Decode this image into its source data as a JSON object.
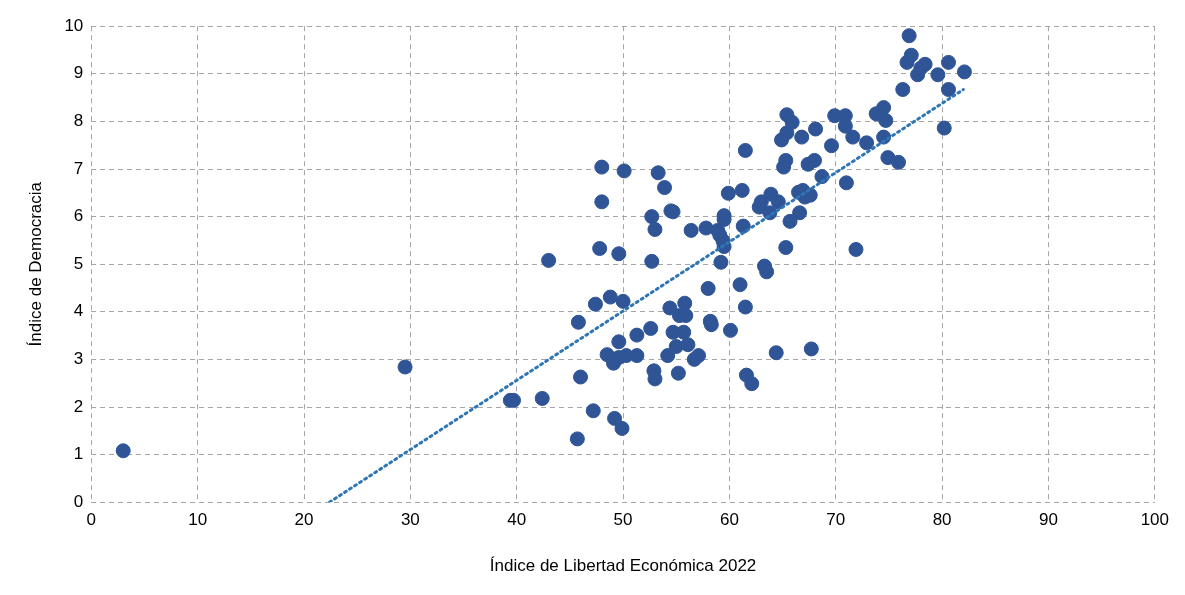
{
  "chart_data": {
    "type": "scatter",
    "xlabel": "Índice de Libertad Económica 2022",
    "ylabel": "Índice de Democracia",
    "xlim": [
      0,
      100
    ],
    "xticks": [
      0,
      10,
      20,
      30,
      40,
      50,
      60,
      70,
      80,
      90,
      100
    ],
    "ylim": [
      0,
      10
    ],
    "yticks": [
      0,
      1,
      2,
      3,
      4,
      5,
      6,
      7,
      8,
      9,
      10
    ],
    "grid": true,
    "legend": false,
    "marker": "circle",
    "series": [
      {
        "type": "scatter",
        "color": "#2f5597",
        "x": [
          3.0,
          29.5,
          39.4,
          39.7,
          42.4,
          43.0,
          45.7,
          45.8,
          46.0,
          47.2,
          47.4,
          47.8,
          48.0,
          48.0,
          48.5,
          48.8,
          49.1,
          49.2,
          49.6,
          49.6,
          49.6,
          49.9,
          50.0,
          50.1,
          50.3,
          51.3,
          51.3,
          52.6,
          52.7,
          52.7,
          52.9,
          53.0,
          53.0,
          53.3,
          53.9,
          54.2,
          54.4,
          54.5,
          54.7,
          54.7,
          55.0,
          55.2,
          55.3,
          55.7,
          55.8,
          55.9,
          56.1,
          56.4,
          56.7,
          57.1,
          57.8,
          58.0,
          58.2,
          58.3,
          58.9,
          59.1,
          59.2,
          59.4,
          59.5,
          59.5,
          59.5,
          59.9,
          60.1,
          61.0,
          61.2,
          61.3,
          61.5,
          61.5,
          61.6,
          62.1,
          62.8,
          63.0,
          63.3,
          63.5,
          63.8,
          63.9,
          64.4,
          64.6,
          64.9,
          65.1,
          65.3,
          65.3,
          65.4,
          65.4,
          65.7,
          65.9,
          66.5,
          66.6,
          66.8,
          66.9,
          67.1,
          67.4,
          67.6,
          67.7,
          68.0,
          68.1,
          68.7,
          69.6,
          69.9,
          70.9,
          70.9,
          71.0,
          71.6,
          71.9,
          72.9,
          73.8,
          74.5,
          74.5,
          74.7,
          74.9,
          75.9,
          76.3,
          76.7,
          76.9,
          77.1,
          77.7,
          78.0,
          78.4,
          79.6,
          80.2,
          80.6,
          80.6,
          82.1
        ],
        "values": [
          1.08,
          2.84,
          2.14,
          2.14,
          2.18,
          5.08,
          1.33,
          3.78,
          2.63,
          1.92,
          4.16,
          5.33,
          7.04,
          6.31,
          3.1,
          4.31,
          2.92,
          1.76,
          3.37,
          3.04,
          5.22,
          1.55,
          4.22,
          6.96,
          3.08,
          3.08,
          3.51,
          3.65,
          6.0,
          5.06,
          2.76,
          2.59,
          5.73,
          6.92,
          6.61,
          3.08,
          4.08,
          6.12,
          6.1,
          3.57,
          3.27,
          2.71,
          3.92,
          3.57,
          4.18,
          3.92,
          3.31,
          5.71,
          3.0,
          3.08,
          5.76,
          4.49,
          3.8,
          3.73,
          5.71,
          5.61,
          5.04,
          5.49,
          6.02,
          5.94,
          5.37,
          6.49,
          3.61,
          4.57,
          6.55,
          5.8,
          7.39,
          4.1,
          2.67,
          2.49,
          6.2,
          6.31,
          4.96,
          4.84,
          6.08,
          6.47,
          3.14,
          6.31,
          7.61,
          7.04,
          7.18,
          5.35,
          7.76,
          8.14,
          5.9,
          7.98,
          6.51,
          6.08,
          7.67,
          6.55,
          6.41,
          7.1,
          6.45,
          3.22,
          7.18,
          7.84,
          6.84,
          7.49,
          8.12,
          8.12,
          7.9,
          6.71,
          7.67,
          5.31,
          7.55,
          8.16,
          8.29,
          7.67,
          8.02,
          7.24,
          7.14,
          8.67,
          9.24,
          9.8,
          9.39,
          8.98,
          9.12,
          9.2,
          8.98,
          7.86,
          9.24,
          8.67,
          9.04
        ]
      },
      {
        "type": "line",
        "color": "#2e75b6",
        "x": [
          22.4,
          82.0
        ],
        "values": [
          0,
          8.67
        ],
        "line_style": "dotted",
        "marker": "none"
      }
    ]
  }
}
